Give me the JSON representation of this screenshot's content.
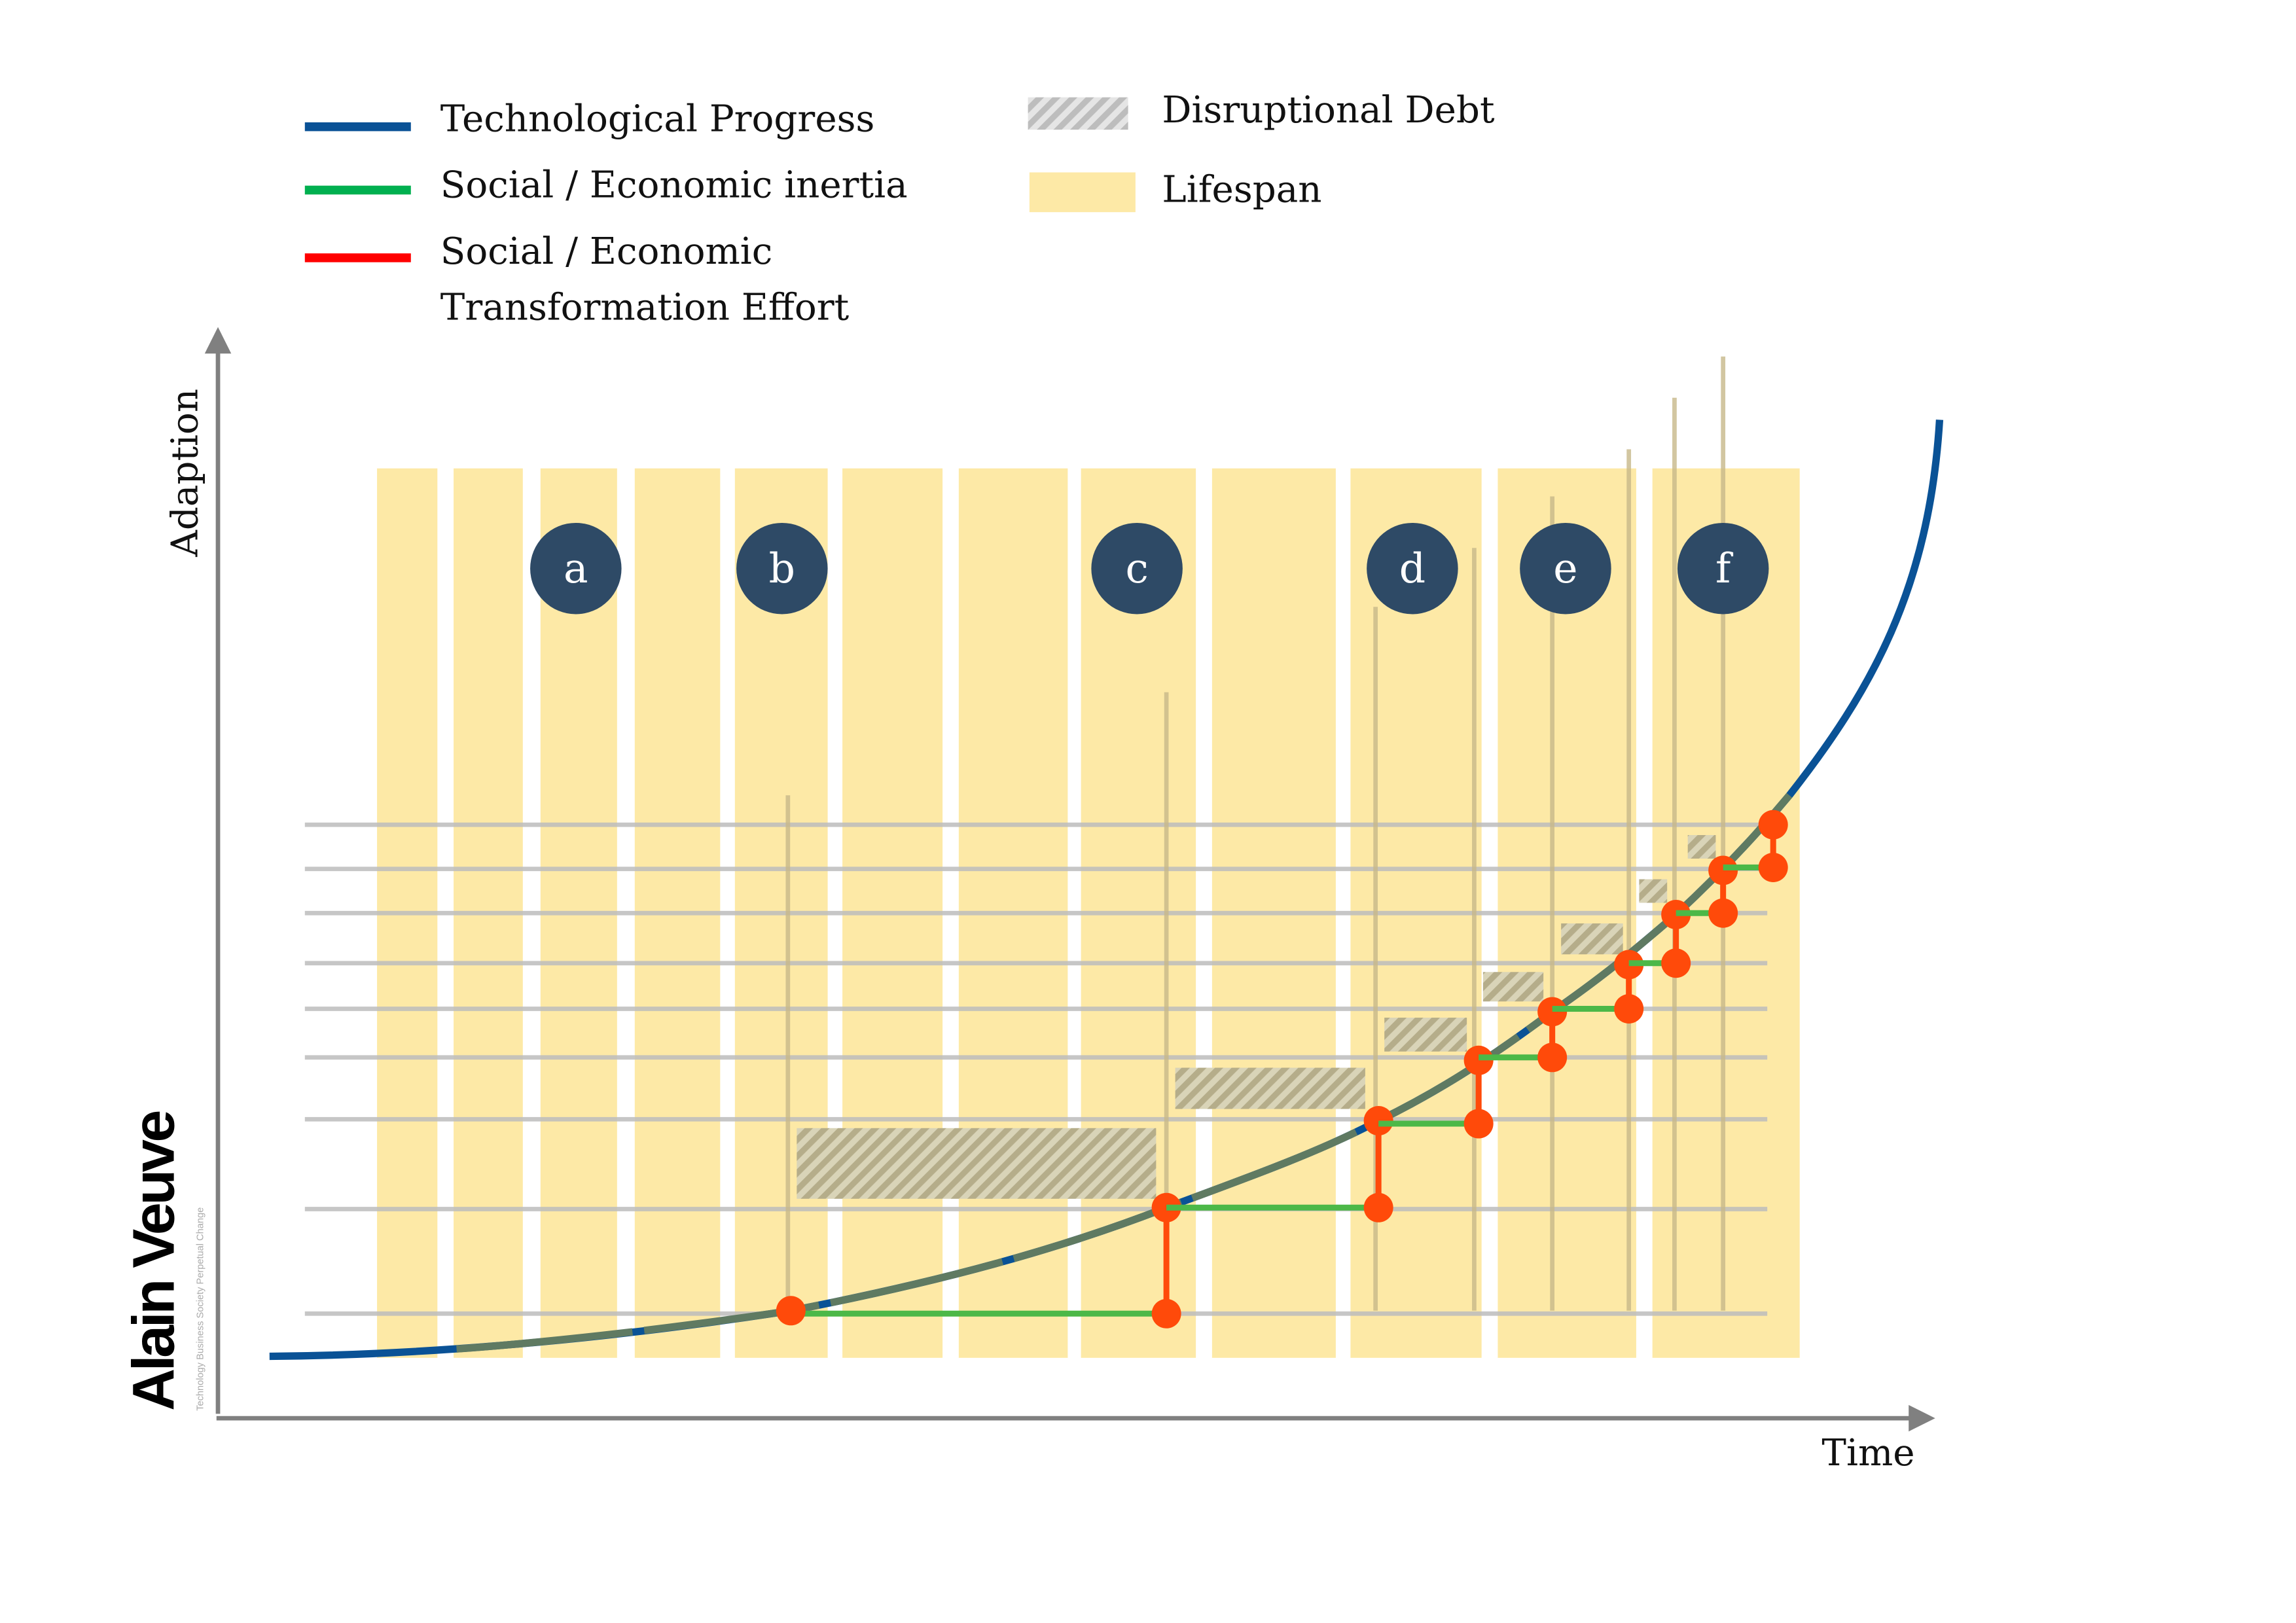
{
  "legend": {
    "tech": "Technological Progress",
    "inertia": "Social / Economic inertia",
    "effort_line1": "Social / Economic",
    "effort_line2": "Transformation Effort",
    "debt": "Disruptional Debt",
    "lifespan": "Lifespan"
  },
  "axes": {
    "y_label": "Adaption",
    "x_label": "Time"
  },
  "markers": [
    "a",
    "b",
    "c",
    "d",
    "e",
    "f"
  ],
  "logo": {
    "name": "Alain Veuve",
    "tagline": "Technology Business Society Perpetual Change"
  },
  "colors": {
    "tech": "#0a5296",
    "inertia": "#00b050",
    "effort": "#ff0000",
    "lifespan": "#fde9a6",
    "debt": "#bfbfbf",
    "marker": "#2e4a66",
    "dot": "#ff4a0a"
  }
}
